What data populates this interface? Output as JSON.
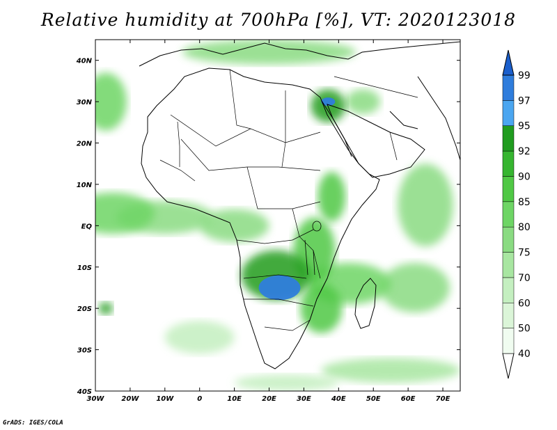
{
  "title": "Relative humidity at 700hPa [%], VT: 2020123018",
  "credit": "GrADS: IGES/COLA",
  "map": {
    "lon_range": [
      -30,
      75
    ],
    "lat_range": [
      -40,
      45
    ],
    "lon_ticks": [
      "30W",
      "20W",
      "10W",
      "0",
      "10E",
      "20E",
      "30E",
      "40E",
      "50E",
      "60E",
      "70E"
    ],
    "lon_tick_values": [
      -30,
      -20,
      -10,
      0,
      10,
      20,
      30,
      40,
      50,
      60,
      70
    ],
    "lat_ticks": [
      "40N",
      "30N",
      "20N",
      "10N",
      "EQ",
      "10S",
      "20S",
      "30S",
      "40S"
    ],
    "lat_tick_values": [
      40,
      30,
      20,
      10,
      0,
      -10,
      -20,
      -30,
      -40
    ]
  },
  "colorbar": {
    "levels": [
      "40",
      "50",
      "60",
      "70",
      "75",
      "80",
      "85",
      "90",
      "92",
      "95",
      "97",
      "99"
    ],
    "colors": [
      "#f0fcf0",
      "#dbf5d8",
      "#c4efc0",
      "#a8e6a1",
      "#8adb82",
      "#6ed565",
      "#50c845",
      "#36b530",
      "#209c1f",
      "#4ba6f0",
      "#2f7ddc",
      "#1b5fcc"
    ]
  },
  "chart_data": {
    "type": "heatmap",
    "title": "Relative humidity at 700hPa [%], VT: 2020123018",
    "xlabel": "",
    "ylabel": "",
    "xlim": [
      -30,
      75
    ],
    "ylim": [
      -40,
      45
    ],
    "x_ticks": [
      "30W",
      "20W",
      "10W",
      "0",
      "10E",
      "20E",
      "30E",
      "40E",
      "50E",
      "60E",
      "70E"
    ],
    "y_ticks": [
      "40N",
      "30N",
      "20N",
      "10N",
      "EQ",
      "10S",
      "20S",
      "30S",
      "40S"
    ],
    "colorbar_levels": [
      40,
      50,
      60,
      70,
      75,
      80,
      85,
      90,
      92,
      95,
      97,
      99
    ],
    "humid_regions": [
      {
        "lon": -25,
        "lat": 3,
        "rx": 12,
        "ry": 5,
        "value": 80
      },
      {
        "lon": -10,
        "lat": 2,
        "rx": 14,
        "ry": 4,
        "value": 75
      },
      {
        "lon": 10,
        "lat": 0,
        "rx": 10,
        "ry": 4,
        "value": 75
      },
      {
        "lon": 22,
        "lat": -12,
        "rx": 10,
        "ry": 6,
        "value": 92
      },
      {
        "lon": 23,
        "lat": -15,
        "rx": 6,
        "ry": 3,
        "value": 97
      },
      {
        "lon": 33,
        "lat": -6,
        "rx": 6,
        "ry": 8,
        "value": 85
      },
      {
        "lon": 35,
        "lat": -20,
        "rx": 6,
        "ry": 6,
        "value": 85
      },
      {
        "lon": 38,
        "lat": 7,
        "rx": 4,
        "ry": 6,
        "value": 85
      },
      {
        "lon": 43,
        "lat": -14,
        "rx": 12,
        "ry": 5,
        "value": 80
      },
      {
        "lon": 65,
        "lat": 5,
        "rx": 8,
        "ry": 10,
        "value": 75
      },
      {
        "lon": 62,
        "lat": -15,
        "rx": 10,
        "ry": 6,
        "value": 75
      },
      {
        "lon": 37,
        "lat": 29,
        "rx": 5,
        "ry": 4,
        "value": 92
      },
      {
        "lon": 37,
        "lat": 30,
        "rx": 2,
        "ry": 1,
        "value": 97
      },
      {
        "lon": 47,
        "lat": 30,
        "rx": 5,
        "ry": 3,
        "value": 75
      },
      {
        "lon": -27,
        "lat": 30,
        "rx": 6,
        "ry": 7,
        "value": 80
      },
      {
        "lon": 20,
        "lat": 42,
        "rx": 25,
        "ry": 3,
        "value": 75
      },
      {
        "lon": 0,
        "lat": -27,
        "rx": 10,
        "ry": 4,
        "value": 60
      },
      {
        "lon": 55,
        "lat": -35,
        "rx": 20,
        "ry": 3,
        "value": 70
      },
      {
        "lon": -27,
        "lat": -20,
        "rx": 2,
        "ry": 1.5,
        "value": 92
      },
      {
        "lon": 25,
        "lat": -38,
        "rx": 15,
        "ry": 2,
        "value": 60
      }
    ]
  }
}
